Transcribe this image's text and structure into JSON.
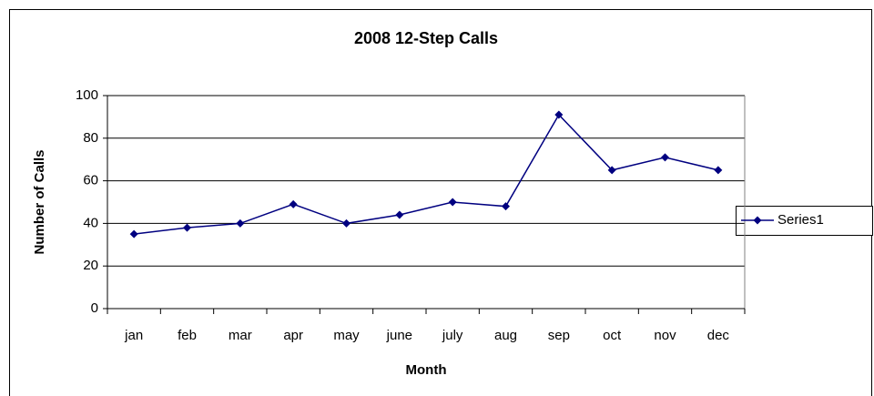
{
  "chart_data": {
    "type": "line",
    "title": "2008 12-Step Calls",
    "xlabel": "Month",
    "ylabel": "Number of Calls",
    "categories": [
      "jan",
      "feb",
      "mar",
      "apr",
      "may",
      "june",
      "july",
      "aug",
      "sep",
      "oct",
      "nov",
      "dec"
    ],
    "series": [
      {
        "name": "Series1",
        "color": "#000080",
        "values": [
          35,
          38,
          40,
          49,
          40,
          44,
          50,
          48,
          91,
          65,
          71,
          65
        ]
      }
    ],
    "ylim": [
      0,
      100
    ],
    "yticks": [
      0,
      20,
      40,
      60,
      80,
      100
    ],
    "grid": true,
    "legend": "right"
  }
}
